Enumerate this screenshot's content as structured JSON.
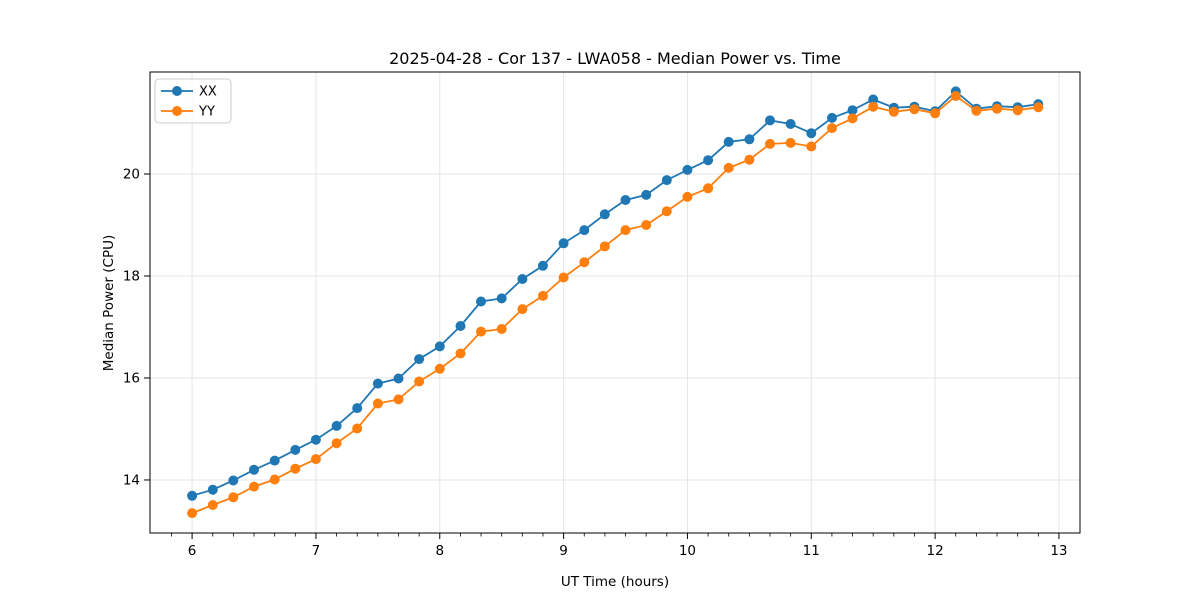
{
  "page_title": "2025-04-28 - Cor 137 - LWA058 - Median Power vs. Time",
  "colors": {
    "series_xx": "#1f77b4",
    "series_yy": "#ff7f0e",
    "grid": "#e5e5e5",
    "spine": "#000000",
    "legend_border": "#cccccc",
    "background": "#ffffff"
  },
  "chart_data": {
    "type": "line",
    "title": "2025-04-28 - Cor 137 - LWA058 - Median Power vs. Time",
    "xlabel": "UT Time (hours)",
    "ylabel": "Median Power (CPU)",
    "xlim": [
      5.66,
      13.17
    ],
    "ylim": [
      12.96,
      22.0
    ],
    "x_major_ticks": [
      6,
      7,
      8,
      9,
      10,
      11,
      12,
      13
    ],
    "x_minor_step": 0.1666667,
    "y_major_ticks": [
      14,
      16,
      18,
      20
    ],
    "grid": true,
    "legend_position": "upper-left",
    "marker": "circle",
    "x": [
      6.0,
      6.167,
      6.333,
      6.5,
      6.667,
      6.833,
      7.0,
      7.167,
      7.333,
      7.5,
      7.667,
      7.833,
      8.0,
      8.167,
      8.333,
      8.5,
      8.667,
      8.833,
      9.0,
      9.167,
      9.333,
      9.5,
      9.667,
      9.833,
      10.0,
      10.167,
      10.333,
      10.5,
      10.667,
      10.833,
      11.0,
      11.167,
      11.333,
      11.5,
      11.667,
      11.833,
      12.0,
      12.167,
      12.333,
      12.5,
      12.667,
      12.833
    ],
    "series": [
      {
        "name": "XX",
        "color": "#1f77b4",
        "values": [
          13.69,
          13.81,
          13.99,
          14.2,
          14.38,
          14.59,
          14.79,
          15.06,
          15.41,
          15.89,
          15.99,
          16.37,
          16.62,
          17.02,
          17.5,
          17.56,
          17.94,
          18.2,
          18.64,
          18.9,
          19.21,
          19.49,
          19.59,
          19.88,
          20.08,
          20.27,
          20.63,
          20.68,
          21.05,
          20.98,
          20.8,
          21.1,
          21.25,
          21.46,
          21.3,
          21.32,
          21.23,
          21.62,
          21.28,
          21.33,
          21.31,
          21.37
        ]
      },
      {
        "name": "YY",
        "color": "#ff7f0e",
        "values": [
          13.35,
          13.51,
          13.66,
          13.87,
          14.01,
          14.22,
          14.41,
          14.72,
          15.01,
          15.5,
          15.58,
          15.93,
          16.18,
          16.48,
          16.91,
          16.96,
          17.35,
          17.61,
          17.97,
          18.27,
          18.58,
          18.9,
          19.0,
          19.27,
          19.55,
          19.72,
          20.12,
          20.28,
          20.59,
          20.61,
          20.54,
          20.9,
          21.09,
          21.32,
          21.22,
          21.27,
          21.19,
          21.53,
          21.24,
          21.28,
          21.25,
          21.31
        ]
      }
    ]
  }
}
